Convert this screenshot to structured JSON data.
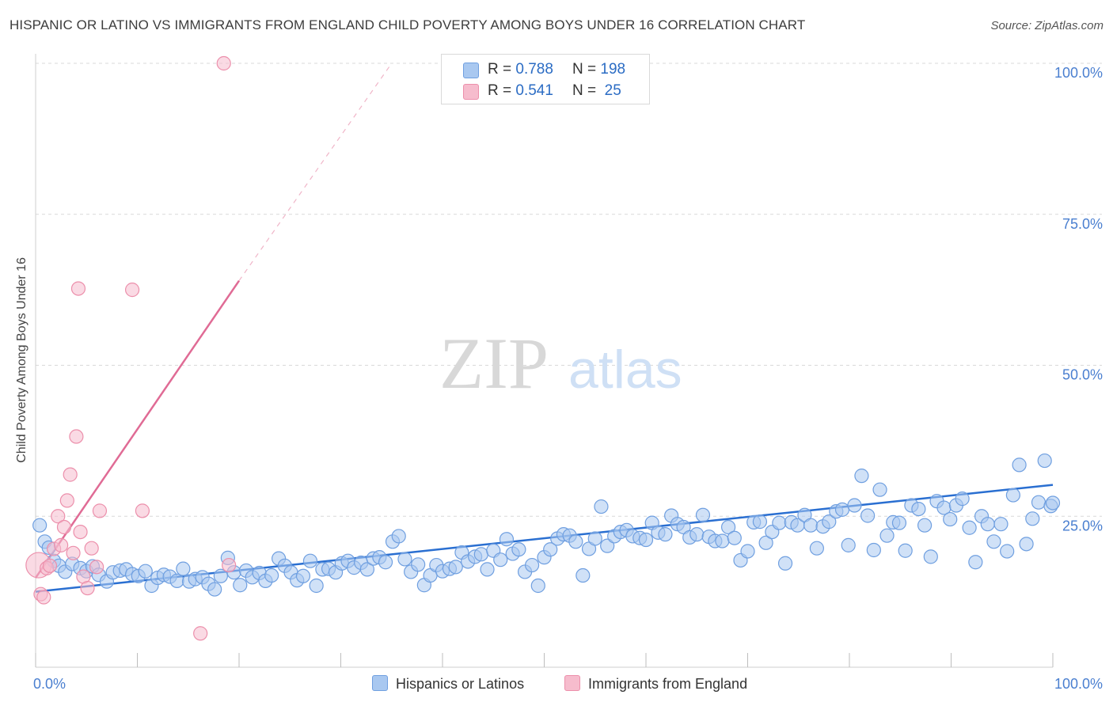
{
  "title": "HISPANIC OR LATINO VS IMMIGRANTS FROM ENGLAND CHILD POVERTY AMONG BOYS UNDER 16 CORRELATION CHART",
  "source": "Source: ZipAtlas.com",
  "watermark": {
    "zip": "ZIP",
    "atlas": "atlas"
  },
  "colors": {
    "blue_fill": "#a9c8f0",
    "blue_stroke": "#6f9fe0",
    "blue_line": "#2a6fd1",
    "pink_fill": "#f6bccd",
    "pink_stroke": "#ec8fab",
    "pink_line": "#e06b95",
    "axis_label": "#4a7fd0",
    "grid": "#d9d9d9"
  },
  "legend_top": [
    {
      "r_label": "R = ",
      "r_value": "0.788",
      "n_label": "N = ",
      "n_value": "198",
      "color": "#a9c8f0"
    },
    {
      "r_label": "R = ",
      "r_value": "0.541",
      "n_label": "N = ",
      "n_value": " 25",
      "color": "#f6bccd"
    }
  ],
  "legend_bottom": [
    {
      "label": "Hispanics or Latinos",
      "color": "#a9c8f0"
    },
    {
      "label": "Immigrants from England",
      "color": "#f6bccd"
    }
  ],
  "chart_data": {
    "type": "scatter",
    "title": "HISPANIC OR LATINO VS IMMIGRANTS FROM ENGLAND CHILD POVERTY AMONG BOYS UNDER 16 CORRELATION CHART",
    "xlabel": "",
    "ylabel": "Child Poverty Among Boys Under 16",
    "xlim": [
      0,
      100
    ],
    "ylim": [
      0,
      100
    ],
    "x_tick_labels": [
      "0.0%",
      "100.0%"
    ],
    "y_tick_labels": [
      "25.0%",
      "50.0%",
      "75.0%",
      "100.0%"
    ],
    "y_ticks": [
      25,
      50,
      75,
      100
    ],
    "grid": true,
    "legend_placement": "top-center",
    "series": [
      {
        "name": "Hispanics or Latinos",
        "trend": {
          "x": [
            0,
            100
          ],
          "y": [
            12.5,
            30.2
          ]
        },
        "points": [
          [
            0.4,
            23.5
          ],
          [
            0.9,
            20.8
          ],
          [
            1.3,
            19.8
          ],
          [
            1.8,
            17.6
          ],
          [
            2.3,
            16.8
          ],
          [
            2.9,
            15.8
          ],
          [
            3.6,
            17.1
          ],
          [
            4.4,
            16.4
          ],
          [
            5.0,
            15.9
          ],
          [
            5.6,
            16.7
          ],
          [
            6.2,
            15.3
          ],
          [
            7.0,
            14.2
          ],
          [
            7.6,
            15.7
          ],
          [
            8.3,
            16.0
          ],
          [
            8.9,
            16.2
          ],
          [
            9.5,
            15.4
          ],
          [
            10.1,
            15.1
          ],
          [
            10.8,
            15.9
          ],
          [
            11.4,
            13.5
          ],
          [
            12.0,
            14.8
          ],
          [
            12.6,
            15.3
          ],
          [
            13.2,
            15.0
          ],
          [
            13.9,
            14.3
          ],
          [
            14.5,
            16.3
          ],
          [
            15.1,
            14.2
          ],
          [
            15.7,
            14.6
          ],
          [
            16.4,
            14.9
          ],
          [
            17.0,
            13.8
          ],
          [
            17.6,
            12.9
          ],
          [
            18.2,
            15.1
          ],
          [
            18.9,
            18.1
          ],
          [
            19.5,
            15.7
          ],
          [
            20.1,
            13.6
          ],
          [
            20.7,
            16.0
          ],
          [
            21.3,
            14.9
          ],
          [
            22.0,
            15.6
          ],
          [
            22.6,
            14.3
          ],
          [
            23.2,
            15.2
          ],
          [
            23.9,
            18.0
          ],
          [
            24.5,
            16.8
          ],
          [
            25.1,
            15.7
          ],
          [
            25.7,
            14.4
          ],
          [
            26.3,
            15.1
          ],
          [
            27.0,
            17.6
          ],
          [
            27.6,
            13.5
          ],
          [
            28.2,
            16.2
          ],
          [
            28.8,
            16.3
          ],
          [
            29.5,
            15.7
          ],
          [
            30.1,
            17.2
          ],
          [
            30.7,
            17.6
          ],
          [
            31.3,
            16.5
          ],
          [
            32.0,
            17.3
          ],
          [
            32.6,
            16.2
          ],
          [
            33.2,
            18.0
          ],
          [
            33.8,
            18.2
          ],
          [
            34.4,
            17.4
          ],
          [
            35.1,
            20.8
          ],
          [
            35.7,
            21.7
          ],
          [
            36.3,
            17.9
          ],
          [
            36.9,
            15.8
          ],
          [
            37.6,
            17.0
          ],
          [
            38.2,
            13.6
          ],
          [
            38.8,
            15.2
          ],
          [
            39.4,
            16.9
          ],
          [
            40.0,
            15.9
          ],
          [
            40.7,
            16.3
          ],
          [
            41.3,
            16.6
          ],
          [
            41.9,
            19.0
          ],
          [
            42.5,
            17.5
          ],
          [
            43.2,
            18.3
          ],
          [
            43.8,
            18.7
          ],
          [
            44.4,
            16.2
          ],
          [
            45.0,
            19.3
          ],
          [
            45.7,
            17.8
          ],
          [
            46.3,
            21.2
          ],
          [
            46.9,
            18.8
          ],
          [
            47.5,
            19.5
          ],
          [
            48.1,
            15.8
          ],
          [
            48.8,
            16.9
          ],
          [
            49.4,
            13.5
          ],
          [
            50.0,
            18.2
          ],
          [
            50.6,
            19.5
          ],
          [
            51.3,
            21.3
          ],
          [
            51.9,
            22.0
          ],
          [
            52.5,
            21.8
          ],
          [
            53.1,
            20.8
          ],
          [
            53.8,
            15.2
          ],
          [
            54.4,
            19.6
          ],
          [
            55.0,
            21.3
          ],
          [
            55.6,
            26.6
          ],
          [
            56.2,
            20.1
          ],
          [
            56.9,
            21.7
          ],
          [
            57.5,
            22.4
          ],
          [
            58.1,
            22.7
          ],
          [
            58.7,
            21.7
          ],
          [
            59.4,
            21.4
          ],
          [
            60.0,
            21.1
          ],
          [
            60.6,
            23.9
          ],
          [
            61.2,
            22.3
          ],
          [
            61.9,
            22.0
          ],
          [
            62.5,
            25.1
          ],
          [
            63.1,
            23.7
          ],
          [
            63.7,
            23.2
          ],
          [
            64.3,
            21.5
          ],
          [
            65.0,
            22.0
          ],
          [
            65.6,
            25.2
          ],
          [
            66.2,
            21.6
          ],
          [
            66.8,
            20.9
          ],
          [
            67.5,
            20.9
          ],
          [
            68.1,
            23.2
          ],
          [
            68.7,
            21.4
          ],
          [
            69.3,
            17.7
          ],
          [
            70.0,
            19.2
          ],
          [
            70.6,
            24.0
          ],
          [
            71.2,
            24.1
          ],
          [
            71.8,
            20.6
          ],
          [
            72.4,
            22.4
          ],
          [
            73.1,
            23.9
          ],
          [
            73.7,
            17.2
          ],
          [
            74.3,
            24.0
          ],
          [
            74.9,
            23.5
          ],
          [
            75.6,
            25.2
          ],
          [
            76.2,
            23.5
          ],
          [
            76.8,
            19.7
          ],
          [
            77.4,
            23.3
          ],
          [
            78.0,
            24.1
          ],
          [
            78.7,
            25.8
          ],
          [
            79.3,
            26.1
          ],
          [
            79.9,
            20.2
          ],
          [
            80.5,
            26.8
          ],
          [
            81.2,
            31.7
          ],
          [
            81.8,
            25.1
          ],
          [
            82.4,
            19.4
          ],
          [
            83.0,
            29.4
          ],
          [
            83.7,
            21.8
          ],
          [
            84.3,
            24.0
          ],
          [
            84.9,
            23.9
          ],
          [
            85.5,
            19.3
          ],
          [
            86.1,
            26.8
          ],
          [
            86.8,
            26.2
          ],
          [
            87.4,
            23.5
          ],
          [
            88.0,
            18.3
          ],
          [
            88.6,
            27.5
          ],
          [
            89.3,
            26.4
          ],
          [
            89.9,
            24.5
          ],
          [
            90.5,
            26.8
          ],
          [
            91.1,
            27.9
          ],
          [
            91.8,
            23.1
          ],
          [
            92.4,
            17.4
          ],
          [
            93.0,
            25.0
          ],
          [
            93.6,
            23.7
          ],
          [
            94.2,
            20.8
          ],
          [
            94.9,
            23.7
          ],
          [
            95.5,
            19.2
          ],
          [
            96.1,
            28.5
          ],
          [
            96.7,
            33.5
          ],
          [
            97.4,
            20.4
          ],
          [
            98.0,
            24.6
          ],
          [
            98.6,
            27.3
          ],
          [
            99.2,
            34.2
          ],
          [
            99.8,
            26.7
          ],
          [
            100.0,
            27.2
          ]
        ]
      },
      {
        "name": "Immigrants from England",
        "trend": {
          "x": [
            0,
            20
          ],
          "y": [
            14.8,
            64.0
          ]
        },
        "trend_dashed": {
          "x": [
            20,
            35
          ],
          "y": [
            64.0,
            100
          ]
        },
        "points": [
          [
            0.3,
            16.9
          ],
          [
            0.5,
            12.1
          ],
          [
            0.8,
            11.6
          ],
          [
            1.1,
            16.4
          ],
          [
            1.4,
            16.8
          ],
          [
            1.8,
            19.6
          ],
          [
            2.2,
            25.0
          ],
          [
            2.5,
            20.2
          ],
          [
            2.8,
            23.2
          ],
          [
            3.1,
            27.6
          ],
          [
            3.4,
            31.9
          ],
          [
            3.7,
            18.9
          ],
          [
            4.0,
            38.2
          ],
          [
            4.2,
            62.7
          ],
          [
            4.4,
            22.4
          ],
          [
            4.7,
            15.0
          ],
          [
            5.1,
            13.1
          ],
          [
            5.5,
            19.7
          ],
          [
            6.0,
            16.6
          ],
          [
            6.3,
            25.9
          ],
          [
            9.5,
            62.5
          ],
          [
            10.5,
            25.9
          ],
          [
            16.2,
            5.6
          ],
          [
            18.5,
            100.0
          ],
          [
            19.0,
            16.9
          ]
        ]
      }
    ]
  }
}
